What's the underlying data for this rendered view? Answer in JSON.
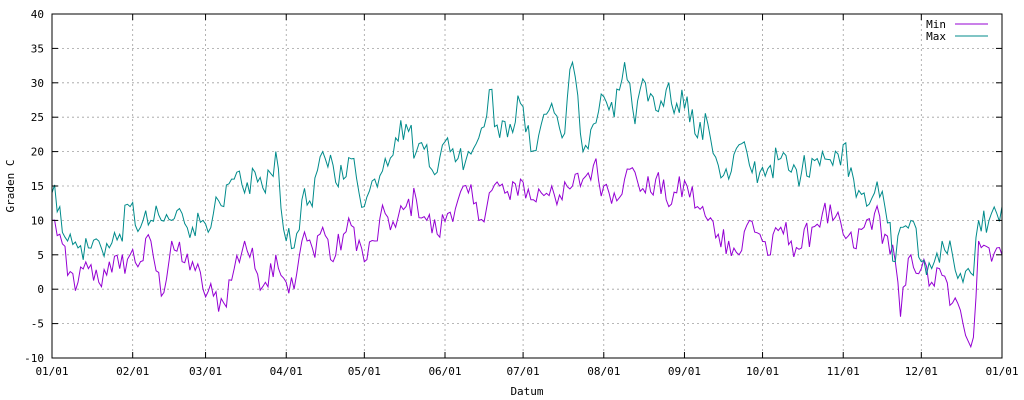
{
  "chart_data": {
    "type": "line",
    "title": "",
    "xlabel": "Datum",
    "ylabel": "Graden C",
    "xlim": [
      0,
      365
    ],
    "ylim": [
      -10,
      40
    ],
    "yticks": [
      -10,
      -5,
      0,
      5,
      10,
      15,
      20,
      25,
      30,
      35,
      40
    ],
    "xtick_labels": [
      "01/01",
      "02/01",
      "03/01",
      "04/01",
      "05/01",
      "06/01",
      "07/01",
      "08/01",
      "09/01",
      "10/01",
      "11/01",
      "12/01",
      "01/01"
    ],
    "xtick_positions": [
      0,
      31,
      59,
      90,
      120,
      151,
      181,
      212,
      243,
      273,
      304,
      334,
      365
    ],
    "grid": true,
    "legend_position": "top-right",
    "series": [
      {
        "name": "Min",
        "color": "#9400d3",
        "anchors": [
          [
            0,
            10
          ],
          [
            3,
            8
          ],
          [
            6,
            2
          ],
          [
            10,
            1
          ],
          [
            14,
            3
          ],
          [
            18,
            1
          ],
          [
            22,
            4
          ],
          [
            26,
            3
          ],
          [
            30,
            5
          ],
          [
            34,
            4
          ],
          [
            38,
            7
          ],
          [
            42,
            -1
          ],
          [
            46,
            7
          ],
          [
            50,
            4
          ],
          [
            54,
            4
          ],
          [
            58,
            0
          ],
          [
            62,
            -1
          ],
          [
            66,
            -2
          ],
          [
            70,
            3
          ],
          [
            74,
            7
          ],
          [
            78,
            3
          ],
          [
            82,
            1
          ],
          [
            86,
            5
          ],
          [
            90,
            1
          ],
          [
            93,
            0
          ],
          [
            96,
            7
          ],
          [
            100,
            6
          ],
          [
            104,
            9
          ],
          [
            108,
            4
          ],
          [
            112,
            8
          ],
          [
            116,
            9
          ],
          [
            120,
            4
          ],
          [
            124,
            7
          ],
          [
            128,
            11
          ],
          [
            132,
            9
          ],
          [
            136,
            12
          ],
          [
            140,
            13
          ],
          [
            144,
            10
          ],
          [
            148,
            8
          ],
          [
            152,
            11
          ],
          [
            156,
            13
          ],
          [
            160,
            14
          ],
          [
            164,
            10
          ],
          [
            168,
            14
          ],
          [
            172,
            15
          ],
          [
            176,
            13
          ],
          [
            180,
            16
          ],
          [
            184,
            13
          ],
          [
            188,
            14
          ],
          [
            192,
            15
          ],
          [
            196,
            13
          ],
          [
            200,
            15
          ],
          [
            204,
            16
          ],
          [
            208,
            18
          ],
          [
            212,
            15
          ],
          [
            216,
            14
          ],
          [
            220,
            16
          ],
          [
            224,
            17
          ],
          [
            228,
            14
          ],
          [
            232,
            16
          ],
          [
            236,
            13
          ],
          [
            240,
            14
          ],
          [
            244,
            15
          ],
          [
            248,
            12
          ],
          [
            252,
            10
          ],
          [
            256,
            8
          ],
          [
            260,
            7
          ],
          [
            264,
            5
          ],
          [
            268,
            10
          ],
          [
            272,
            8
          ],
          [
            276,
            5
          ],
          [
            280,
            9
          ],
          [
            284,
            7
          ],
          [
            288,
            6
          ],
          [
            292,
            9
          ],
          [
            296,
            11
          ],
          [
            300,
            10
          ],
          [
            304,
            8
          ],
          [
            308,
            6
          ],
          [
            312,
            9
          ],
          [
            316,
            11
          ],
          [
            320,
            8
          ],
          [
            324,
            4
          ],
          [
            326,
            -4
          ],
          [
            330,
            5
          ],
          [
            334,
            3
          ],
          [
            338,
            1
          ],
          [
            342,
            2
          ],
          [
            346,
            -2
          ],
          [
            350,
            -5
          ],
          [
            354,
            -7
          ],
          [
            356,
            7
          ],
          [
            360,
            6
          ],
          [
            363,
            6
          ],
          [
            365,
            5
          ]
        ]
      },
      {
        "name": "Max",
        "color": "#008b8b",
        "anchors": [
          [
            0,
            14
          ],
          [
            3,
            12
          ],
          [
            6,
            7
          ],
          [
            10,
            6
          ],
          [
            14,
            6
          ],
          [
            18,
            7
          ],
          [
            22,
            6
          ],
          [
            26,
            8
          ],
          [
            30,
            12
          ],
          [
            34,
            9
          ],
          [
            38,
            10
          ],
          [
            42,
            10
          ],
          [
            46,
            10
          ],
          [
            50,
            11
          ],
          [
            54,
            9
          ],
          [
            58,
            10
          ],
          [
            62,
            11
          ],
          [
            66,
            12
          ],
          [
            70,
            16
          ],
          [
            74,
            14
          ],
          [
            78,
            17
          ],
          [
            82,
            14
          ],
          [
            86,
            20
          ],
          [
            90,
            7
          ],
          [
            93,
            6
          ],
          [
            96,
            13
          ],
          [
            100,
            12
          ],
          [
            104,
            20
          ],
          [
            108,
            18
          ],
          [
            112,
            16
          ],
          [
            116,
            19
          ],
          [
            120,
            12
          ],
          [
            124,
            16
          ],
          [
            128,
            19
          ],
          [
            132,
            22
          ],
          [
            136,
            24
          ],
          [
            140,
            20
          ],
          [
            144,
            21
          ],
          [
            148,
            17
          ],
          [
            152,
            22
          ],
          [
            156,
            19
          ],
          [
            160,
            20
          ],
          [
            164,
            22
          ],
          [
            168,
            29
          ],
          [
            172,
            22
          ],
          [
            176,
            24
          ],
          [
            180,
            27
          ],
          [
            184,
            20
          ],
          [
            188,
            24
          ],
          [
            192,
            27
          ],
          [
            196,
            22
          ],
          [
            200,
            33
          ],
          [
            204,
            20
          ],
          [
            208,
            24
          ],
          [
            212,
            28
          ],
          [
            216,
            25
          ],
          [
            220,
            33
          ],
          [
            224,
            24
          ],
          [
            228,
            30
          ],
          [
            232,
            26
          ],
          [
            236,
            29
          ],
          [
            240,
            27
          ],
          [
            244,
            28
          ],
          [
            248,
            22
          ],
          [
            252,
            24
          ],
          [
            256,
            18
          ],
          [
            260,
            16
          ],
          [
            264,
            21
          ],
          [
            268,
            18
          ],
          [
            272,
            17
          ],
          [
            276,
            18
          ],
          [
            280,
            19
          ],
          [
            284,
            17
          ],
          [
            288,
            17
          ],
          [
            292,
            19
          ],
          [
            296,
            20
          ],
          [
            300,
            18
          ],
          [
            304,
            21
          ],
          [
            308,
            16
          ],
          [
            312,
            14
          ],
          [
            316,
            14
          ],
          [
            320,
            12
          ],
          [
            324,
            4
          ],
          [
            326,
            9
          ],
          [
            330,
            10
          ],
          [
            334,
            4
          ],
          [
            338,
            3
          ],
          [
            342,
            7
          ],
          [
            346,
            5
          ],
          [
            350,
            1
          ],
          [
            354,
            2
          ],
          [
            356,
            10
          ],
          [
            360,
            10
          ],
          [
            363,
            11
          ],
          [
            365,
            12
          ]
        ]
      }
    ]
  }
}
